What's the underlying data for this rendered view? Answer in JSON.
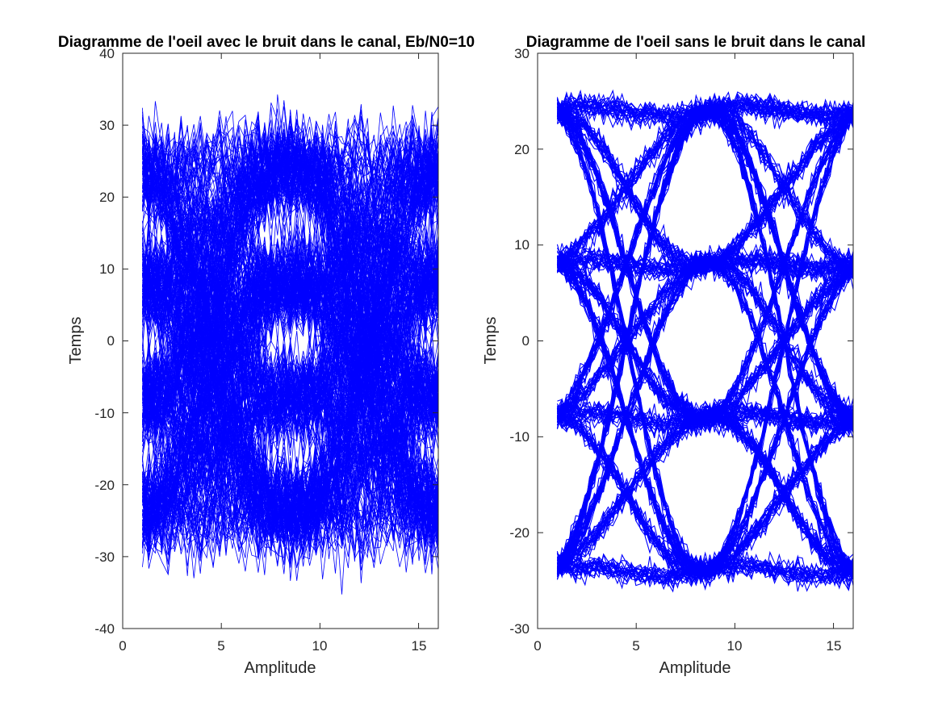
{
  "chart_data": [
    {
      "type": "line",
      "title": "Diagramme de l'oeil avec le bruit dans le canal, Eb/N0=10",
      "xlabel": "Amplitude",
      "ylabel": "Temps",
      "xlim": [
        0,
        16
      ],
      "ylim": [
        -40,
        40
      ],
      "xticks": [
        "0",
        "5",
        "10",
        "15"
      ],
      "yticks": [
        "-40",
        "-30",
        "-20",
        "-10",
        "0",
        "10",
        "20",
        "30",
        "40"
      ],
      "x_range_of_traces": [
        1,
        16
      ],
      "symbol_levels": [
        -24,
        -8,
        8,
        24
      ],
      "noise_spread": 3.5,
      "grid": false,
      "trace_color": "#0000ff",
      "trace_description_hidden": "eye diagram traces"
    },
    {
      "type": "line",
      "title": "Diagramme de l'oeil sans le bruit dans le canal",
      "xlabel": "Amplitude",
      "ylabel": "Temps",
      "xlim": [
        0,
        16
      ],
      "ylim": [
        -30,
        30
      ],
      "xticks": [
        "0",
        "5",
        "10",
        "15"
      ],
      "yticks": [
        "-30",
        "-20",
        "-10",
        "0",
        "10",
        "20",
        "30"
      ],
      "x_range_of_traces": [
        1,
        16
      ],
      "symbol_levels": [
        -24,
        -8,
        8,
        24
      ],
      "noise_spread": 0.6,
      "grid": false,
      "trace_color": "#0000ff"
    }
  ]
}
